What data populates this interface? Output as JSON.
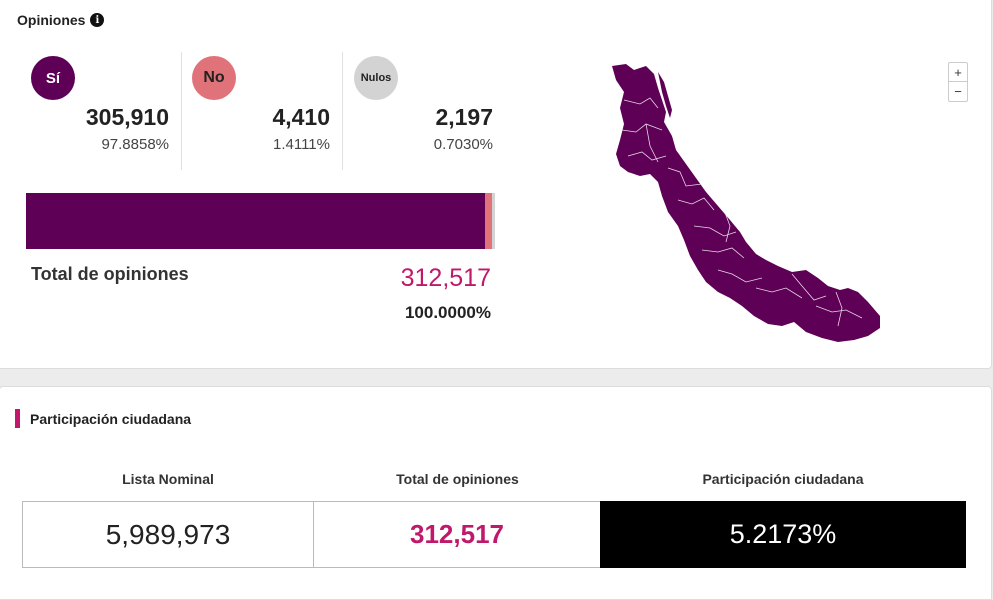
{
  "opiniones": {
    "title": "Opiniones",
    "info_icon": "info-icon",
    "options": [
      {
        "key": "si",
        "label": "Sí",
        "count": "305,910",
        "pct": "97.8858%",
        "color": "#5e0055"
      },
      {
        "key": "no",
        "label": "No",
        "count": "4,410",
        "pct": "1.4111%",
        "color": "#e0737a"
      },
      {
        "key": "nulos",
        "label": "Nulos",
        "count": "2,197",
        "pct": "0.7030%",
        "color": "#d3d3d3"
      }
    ],
    "bar_shares": [
      97.8858,
      1.4111,
      0.703
    ],
    "total_label": "Total de opiniones",
    "total_count": "312,517",
    "total_pct": "100.0000%",
    "map": {
      "fill": "#5e0055",
      "zoom_in": "+",
      "zoom_out": "−"
    }
  },
  "participacion": {
    "title": "Participación ciudadana",
    "accent": "#c0186a",
    "headers": [
      "Lista Nominal",
      "Total de opiniones",
      "Participación ciudadana"
    ],
    "lista_nominal": "5,989,973",
    "total_opiniones": "312,517",
    "participacion": "5.2173%"
  }
}
